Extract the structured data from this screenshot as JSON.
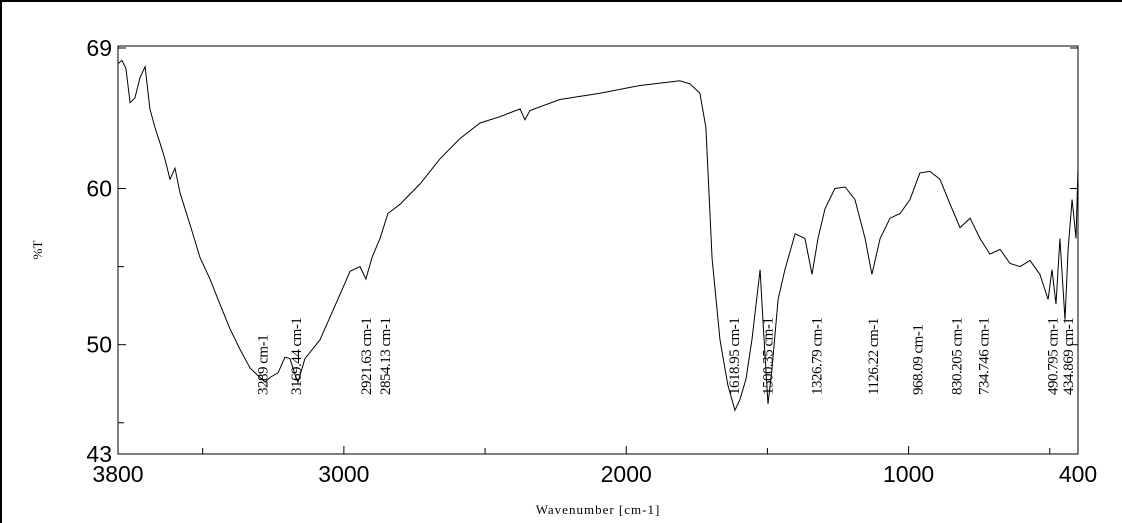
{
  "chart_data": {
    "type": "line",
    "xlabel": "Wavenumber [cm-1]",
    "ylabel": "%T",
    "xlim": [
      3800,
      400
    ],
    "ylim": [
      43,
      69
    ],
    "xticks": [
      3800,
      3000,
      2000,
      1000,
      400
    ],
    "yticks": [
      69,
      60,
      50,
      43
    ],
    "xminorticks": [
      3500,
      2500,
      1500,
      500
    ],
    "yminorticks": [
      55,
      45
    ],
    "color": "#000000",
    "x": [
      3800,
      3786,
      3772,
      3757,
      3740,
      3722,
      3704,
      3687,
      3669,
      3651,
      3634,
      3616,
      3598,
      3580,
      3545,
      3510,
      3474,
      3439,
      3403,
      3368,
      3332,
      3297,
      3279,
      3262,
      3233,
      3209,
      3191,
      3173,
      3163,
      3138,
      3085,
      3014,
      2978,
      2943,
      2922,
      2900,
      2872,
      2844,
      2801,
      2730,
      2660,
      2589,
      2518,
      2447,
      2376,
      2359,
      2341,
      2235,
      2093,
      1951,
      1810,
      1774,
      1739,
      1718,
      1696,
      1668,
      1640,
      1615,
      1597,
      1576,
      1555,
      1526,
      1516,
      1498,
      1484,
      1462,
      1438,
      1402,
      1367,
      1342,
      1321,
      1296,
      1261,
      1225,
      1190,
      1154,
      1130,
      1101,
      1066,
      1030,
      995,
      960,
      924,
      889,
      853,
      818,
      782,
      747,
      712,
      676,
      641,
      605,
      570,
      535,
      506,
      492,
      478,
      464,
      446,
      435,
      421,
      407,
      400
    ],
    "values": [
      68.0,
      68.2,
      67.7,
      65.5,
      65.8,
      67.1,
      67.8,
      65.1,
      63.9,
      62.9,
      61.9,
      60.6,
      61.3,
      59.7,
      57.7,
      55.6,
      54.2,
      52.6,
      51.0,
      49.7,
      48.5,
      47.9,
      47.6,
      47.9,
      48.2,
      49.2,
      49.1,
      48.1,
      47.6,
      49.1,
      50.3,
      53.2,
      54.7,
      55.0,
      54.2,
      55.6,
      56.8,
      58.4,
      59.0,
      60.3,
      61.9,
      63.2,
      64.2,
      64.6,
      65.1,
      64.4,
      65.0,
      65.7,
      66.1,
      66.6,
      66.9,
      66.7,
      66.1,
      63.9,
      55.5,
      50.3,
      47.4,
      45.8,
      46.5,
      47.8,
      50.3,
      54.8,
      51.6,
      46.2,
      48.4,
      52.9,
      54.8,
      57.1,
      56.8,
      54.5,
      56.8,
      58.7,
      60.0,
      60.1,
      59.3,
      56.8,
      54.5,
      56.8,
      58.1,
      58.4,
      59.3,
      61.0,
      61.1,
      60.6,
      59.0,
      57.5,
      58.1,
      56.8,
      55.8,
      56.1,
      55.2,
      55.0,
      55.4,
      54.5,
      52.9,
      54.8,
      52.6,
      56.8,
      51.6,
      56.1,
      59.3,
      56.8,
      61.3
    ],
    "annotations": [
      {
        "x": 3289,
        "label": "3289 cm-1"
      },
      {
        "x": 3169.44,
        "label": "3169.44 cm-1"
      },
      {
        "x": 2921.63,
        "label": "2921.63 cm-1"
      },
      {
        "x": 2854.13,
        "label": "2854.13 cm-1"
      },
      {
        "x": 1618.95,
        "label": "1618.95 cm-1"
      },
      {
        "x": 1500.35,
        "label": "1500.35 cm-1"
      },
      {
        "x": 1326.79,
        "label": "1326.79 cm-1"
      },
      {
        "x": 1126.22,
        "label": "1126.22 cm-1"
      },
      {
        "x": 968.09,
        "label": "968.09 cm-1"
      },
      {
        "x": 830.205,
        "label": "830.205 cm-1"
      },
      {
        "x": 734.746,
        "label": "734.746 cm-1"
      },
      {
        "x": 490.795,
        "label": "490.795 cm-1"
      },
      {
        "x": 434.869,
        "label": "434.869 cm-1"
      }
    ]
  }
}
